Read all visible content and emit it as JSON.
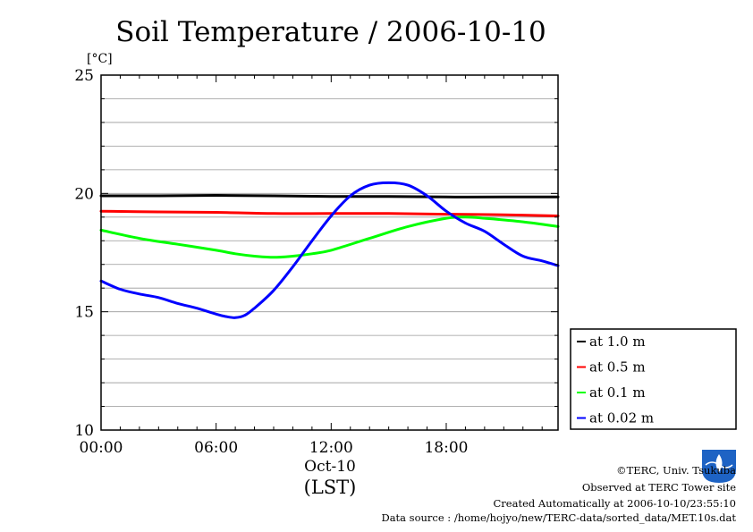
{
  "chart_data": {
    "type": "line",
    "title": "Soil Temperature / 2006-10-10",
    "ylabel": "[°C]",
    "ylim": [
      10,
      25
    ],
    "yticks": [
      10,
      15,
      20,
      25
    ],
    "xlim": [
      0,
      23.83
    ],
    "xticks": [
      {
        "value": 0,
        "label": "00:00"
      },
      {
        "value": 6,
        "label": "06:00"
      },
      {
        "value": 12,
        "label": "12:00"
      },
      {
        "value": 18,
        "label": "18:00"
      }
    ],
    "date_label": "Oct-10",
    "xlabel": "(LST)",
    "grid": true,
    "legend_position": "right",
    "series": [
      {
        "name": "at 1.0 m",
        "color": "#000000",
        "x": [
          0,
          3,
          6,
          9,
          12,
          15,
          18,
          21,
          23.83
        ],
        "y": [
          19.9,
          19.9,
          19.92,
          19.9,
          19.87,
          19.87,
          19.85,
          19.85,
          19.85
        ]
      },
      {
        "name": "at 0.5 m",
        "color": "#ff0000",
        "x": [
          0,
          3,
          6,
          9,
          12,
          15,
          18,
          21,
          23.83
        ],
        "y": [
          19.25,
          19.22,
          19.2,
          19.15,
          19.15,
          19.15,
          19.12,
          19.1,
          19.05
        ]
      },
      {
        "name": "at 0.1 m",
        "color": "#00ff00",
        "x": [
          0,
          2,
          4,
          6,
          7,
          8,
          9,
          10,
          11,
          12,
          14,
          16,
          18,
          19,
          20,
          22,
          23.83
        ],
        "y": [
          18.45,
          18.1,
          17.85,
          17.6,
          17.45,
          17.35,
          17.3,
          17.35,
          17.45,
          17.6,
          18.1,
          18.6,
          18.95,
          19.0,
          18.95,
          18.8,
          18.6
        ]
      },
      {
        "name": "at 0.02 m",
        "color": "#0000ff",
        "x": [
          0,
          1,
          2,
          3,
          4,
          5,
          6,
          6.5,
          7,
          7.5,
          8,
          9,
          10,
          11,
          12,
          13,
          14,
          15,
          16,
          17,
          18,
          19,
          20,
          21,
          22,
          23,
          23.83
        ],
        "y": [
          16.3,
          15.95,
          15.75,
          15.6,
          15.35,
          15.15,
          14.9,
          14.8,
          14.75,
          14.85,
          15.15,
          15.9,
          16.9,
          18.0,
          19.05,
          19.9,
          20.35,
          20.45,
          20.35,
          19.9,
          19.25,
          18.75,
          18.4,
          17.85,
          17.35,
          17.15,
          16.95
        ]
      }
    ]
  },
  "credits": {
    "copyright": "©TERC, Univ. Tsukuba",
    "observed": "Observed at TERC Tower site",
    "created": "Created Automatically at 2006-10-10/23:55:10",
    "source": "Data source : /home/hojyo/new/TERC-data/sorted_data/MET.10s.dat",
    "logo_text": "TERC"
  }
}
